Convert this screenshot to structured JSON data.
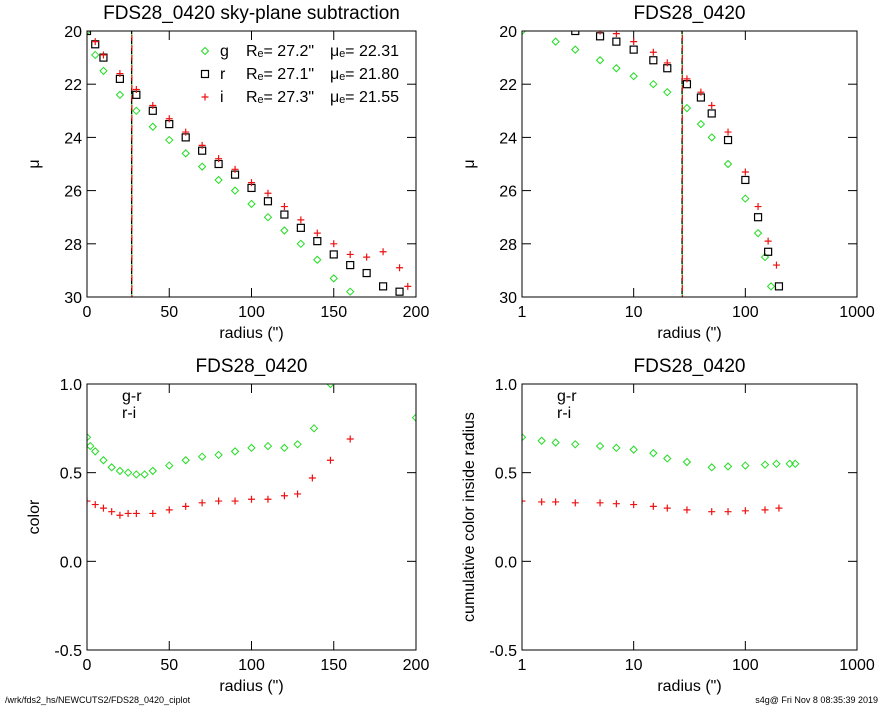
{
  "chart_data": [
    {
      "type": "scatter",
      "title": "FDS28_0420 sky-plane subtraction",
      "x_label": "radius (\")",
      "y_label": "μ",
      "x_log": false,
      "xlim": [
        0,
        200
      ],
      "ylim": [
        30,
        20
      ],
      "xticks": [
        0,
        50,
        100,
        150,
        200
      ],
      "yticks": [
        20,
        22,
        24,
        26,
        28,
        30
      ],
      "vlines": [
        {
          "value": 27.2,
          "color": "#22dd22"
        },
        {
          "value": 27.1,
          "color": "#000000"
        },
        {
          "value": 27.3,
          "color": "#ee1111"
        }
      ],
      "series": [
        {
          "name": "g",
          "color": "#22dd22",
          "marker": "diamond",
          "re_label": "Rₑ= 27.2\"",
          "mu_label": "μₑ= 22.31",
          "x": [
            0,
            5,
            10,
            20,
            30,
            40,
            50,
            60,
            70,
            80,
            90,
            100,
            110,
            120,
            130,
            140,
            150,
            160
          ],
          "values": [
            20.0,
            20.9,
            21.5,
            22.4,
            23.0,
            23.6,
            24.1,
            24.6,
            25.1,
            25.6,
            26.0,
            26.5,
            27.0,
            27.5,
            28.0,
            28.6,
            29.3,
            29.8
          ]
        },
        {
          "name": "r",
          "color": "#000000",
          "marker": "square",
          "re_label": "Rₑ= 27.1\"",
          "mu_label": "μₑ= 21.80",
          "x": [
            0,
            5,
            10,
            20,
            30,
            40,
            50,
            60,
            70,
            80,
            90,
            100,
            110,
            120,
            130,
            140,
            150,
            160,
            170,
            180,
            190
          ],
          "values": [
            20.0,
            20.5,
            21.0,
            21.8,
            22.4,
            23.0,
            23.5,
            24.0,
            24.5,
            25.0,
            25.4,
            25.9,
            26.4,
            26.9,
            27.4,
            27.9,
            28.4,
            28.8,
            29.1,
            29.6,
            29.8
          ]
        },
        {
          "name": "i",
          "color": "#ee1111",
          "marker": "plus",
          "re_label": "Rₑ= 27.3\"",
          "mu_label": "μₑ= 21.55",
          "x": [
            0,
            5,
            10,
            20,
            30,
            40,
            50,
            60,
            70,
            80,
            90,
            100,
            110,
            120,
            130,
            140,
            150,
            160,
            170,
            180,
            190,
            195
          ],
          "values": [
            20.0,
            20.4,
            20.9,
            21.6,
            22.2,
            22.8,
            23.3,
            23.8,
            24.3,
            24.8,
            25.2,
            25.7,
            26.1,
            26.6,
            27.1,
            27.6,
            28.0,
            28.4,
            28.5,
            28.3,
            28.9,
            29.6
          ]
        }
      ]
    },
    {
      "type": "scatter",
      "title": "FDS28_0420",
      "x_label": "radius (\")",
      "y_label": "μ",
      "x_log": true,
      "xlim": [
        1,
        1000
      ],
      "ylim": [
        30,
        20
      ],
      "xticks": [
        1,
        10,
        100,
        1000
      ],
      "yticks": [
        20,
        22,
        24,
        26,
        28,
        30
      ],
      "vlines": [
        {
          "value": 27.2,
          "color": "#22dd22"
        },
        {
          "value": 27.1,
          "color": "#000000"
        },
        {
          "value": 27.3,
          "color": "#ee1111"
        }
      ],
      "series": [
        {
          "color": "#22dd22",
          "marker": "diamond",
          "x": [
            1,
            2,
            3,
            5,
            7,
            10,
            15,
            20,
            30,
            40,
            50,
            70,
            100,
            130,
            150,
            170
          ],
          "values": [
            20.0,
            20.4,
            20.7,
            21.1,
            21.4,
            21.7,
            22.0,
            22.3,
            22.9,
            23.5,
            24.0,
            25.0,
            26.3,
            27.6,
            28.5,
            29.6
          ]
        },
        {
          "color": "#000000",
          "marker": "square",
          "x": [
            3,
            5,
            7,
            10,
            15,
            20,
            30,
            40,
            50,
            70,
            100,
            130,
            160,
            200
          ],
          "values": [
            20.0,
            20.2,
            20.4,
            20.7,
            21.1,
            21.4,
            22.0,
            22.5,
            23.1,
            24.1,
            25.6,
            27.0,
            28.3,
            29.6
          ]
        },
        {
          "color": "#ee1111",
          "marker": "plus",
          "x": [
            5,
            7,
            10,
            15,
            20,
            30,
            40,
            50,
            70,
            100,
            130,
            160,
            190
          ],
          "values": [
            20.0,
            20.1,
            20.4,
            20.8,
            21.2,
            21.8,
            22.3,
            22.8,
            23.8,
            25.3,
            26.6,
            27.9,
            28.8
          ]
        }
      ]
    },
    {
      "type": "scatter",
      "title": "FDS28_0420",
      "x_label": "radius (\")",
      "y_label": "color",
      "x_log": false,
      "xlim": [
        0,
        200
      ],
      "ylim": [
        -0.5,
        1.0
      ],
      "xticks": [
        0,
        50,
        100,
        150,
        200
      ],
      "yticks": [
        -0.5,
        {
          "value": 0,
          "label": "0.0"
        },
        0.5,
        {
          "value": 1,
          "label": "1.0"
        }
      ],
      "series": [
        {
          "name": "g-r",
          "color": "#22dd22",
          "marker": "diamond",
          "x": [
            0,
            2,
            5,
            10,
            15,
            20,
            25,
            30,
            35,
            40,
            50,
            60,
            70,
            80,
            90,
            100,
            110,
            120,
            128,
            138,
            148,
            200
          ],
          "values": [
            0.7,
            0.65,
            0.62,
            0.57,
            0.53,
            0.51,
            0.5,
            0.49,
            0.49,
            0.51,
            0.54,
            0.57,
            0.59,
            0.6,
            0.62,
            0.64,
            0.65,
            0.64,
            0.66,
            0.75,
            1.0,
            0.81
          ]
        },
        {
          "name": "r-i",
          "color": "#ee1111",
          "marker": "plus",
          "x": [
            0,
            5,
            10,
            15,
            20,
            25,
            30,
            40,
            50,
            60,
            70,
            80,
            90,
            100,
            110,
            120,
            128,
            137,
            148,
            160
          ],
          "values": [
            0.34,
            0.32,
            0.3,
            0.28,
            0.26,
            0.27,
            0.27,
            0.27,
            0.29,
            0.31,
            0.33,
            0.34,
            0.34,
            0.35,
            0.35,
            0.37,
            0.38,
            0.47,
            0.57,
            0.69
          ]
        }
      ]
    },
    {
      "type": "scatter",
      "title": "FDS28_0420",
      "x_label": "radius (\")",
      "y_label": "cumulative color inside radius",
      "x_log": true,
      "xlim": [
        1,
        1000
      ],
      "ylim": [
        -0.5,
        1.0
      ],
      "xticks": [
        1,
        10,
        100,
        1000
      ],
      "yticks": [
        -0.5,
        {
          "value": 0,
          "label": "0.0"
        },
        0.5,
        {
          "value": 1,
          "label": "1.0"
        }
      ],
      "series": [
        {
          "name": "g-r",
          "color": "#22dd22",
          "marker": "diamond",
          "x": [
            1,
            1.5,
            2,
            3,
            5,
            7,
            10,
            15,
            20,
            30,
            50,
            70,
            100,
            150,
            190,
            250,
            280
          ],
          "values": [
            0.7,
            0.68,
            0.67,
            0.66,
            0.65,
            0.64,
            0.63,
            0.61,
            0.58,
            0.56,
            0.53,
            0.535,
            0.54,
            0.545,
            0.55,
            0.55,
            0.55
          ]
        },
        {
          "name": "r-i",
          "color": "#ee1111",
          "marker": "plus",
          "x": [
            1,
            1.5,
            2,
            3,
            5,
            7,
            10,
            15,
            20,
            30,
            50,
            70,
            100,
            150,
            200
          ],
          "values": [
            0.34,
            0.335,
            0.335,
            0.33,
            0.33,
            0.325,
            0.32,
            0.31,
            0.3,
            0.29,
            0.28,
            0.28,
            0.285,
            0.29,
            0.3
          ]
        }
      ]
    }
  ],
  "footer": {
    "left": "/wrk/fds2_hs/NEWCUTS2/FDS28_0420_ciplot",
    "right": "s4g@  Fri Nov  8 08:35:39 2019"
  }
}
